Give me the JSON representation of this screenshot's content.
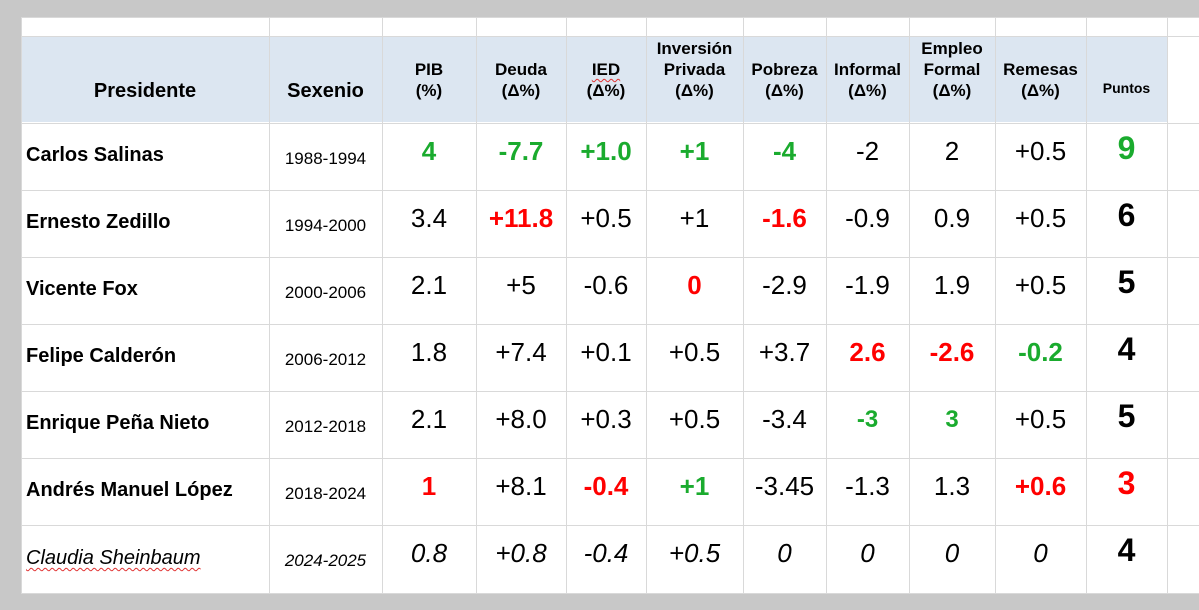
{
  "table": {
    "headers": {
      "presidente": "Presidente",
      "sexenio": "Sexenio",
      "pib": [
        "PIB",
        "(%)"
      ],
      "deuda": [
        "Deuda",
        "(Δ%)"
      ],
      "ied": [
        "IED",
        "(Δ%)"
      ],
      "inversion": [
        "Inversión",
        "Privada",
        "(Δ%)"
      ],
      "pobreza": [
        "Pobreza",
        "(Δ%)"
      ],
      "informal": [
        "Informal",
        "(Δ%)"
      ],
      "empleo": [
        "Empleo",
        "Formal",
        "(Δ%)"
      ],
      "remesas": [
        "Remesas",
        "(Δ%)"
      ],
      "puntos": "Puntos"
    },
    "rows": [
      {
        "name": "Carlos Salinas",
        "period": "1988-1994",
        "values": [
          "4",
          "-7.7",
          "+1.0",
          "+1",
          "-4",
          "-2",
          "2",
          "+0.5"
        ],
        "points": "9"
      },
      {
        "name": "Ernesto Zedillo",
        "period": "1994-2000",
        "values": [
          "3.4",
          "+11.8",
          "+0.5",
          "+1",
          "-1.6",
          "-0.9",
          "0.9",
          "+0.5"
        ],
        "points": "6"
      },
      {
        "name": "Vicente Fox",
        "period": "2000-2006",
        "values": [
          "2.1",
          "+5",
          "-0.6",
          "0",
          "-2.9",
          "-1.9",
          "1.9",
          "+0.5"
        ],
        "points": "5"
      },
      {
        "name": "Felipe Calderón",
        "period": "2006-2012",
        "values": [
          "1.8",
          "+7.4",
          "+0.1",
          "+0.5",
          "+3.7",
          "2.6",
          "-2.6",
          "-0.2"
        ],
        "points": "4"
      },
      {
        "name": "Enrique Peña Nieto",
        "period": "2012-2018",
        "values": [
          "2.1",
          "+8.0",
          "+0.3",
          "+0.5",
          "-3.4",
          "-3",
          "3",
          "+0.5"
        ],
        "points": "5"
      },
      {
        "name": "Andrés Manuel López",
        "period": "2018-2024",
        "values": [
          "1",
          "+8.1",
          "-0.4",
          "+1",
          "-3.45",
          "-1.3",
          "1.3",
          "+0.6"
        ],
        "points": "3"
      },
      {
        "name": "Claudia Sheinbaum",
        "period": "2024-2025",
        "values": [
          "0.8",
          "+0.8",
          "-0.4",
          "+0.5",
          "0",
          "0",
          "0",
          "0"
        ],
        "points": "4"
      }
    ]
  },
  "colors": {
    "green": "#1aab2e",
    "red": "#ff0000",
    "header_bg": "#dce6f1",
    "grid": "#d9d9d9"
  }
}
